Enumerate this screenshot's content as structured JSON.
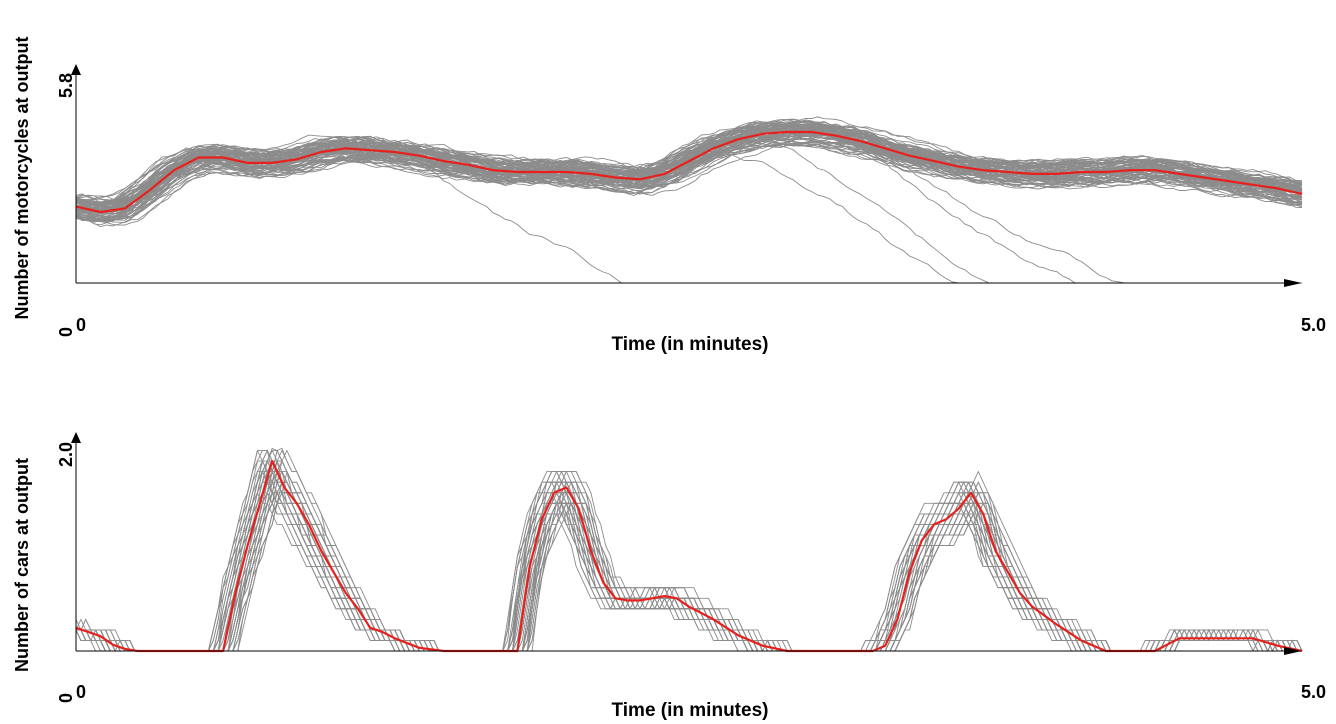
{
  "chart_data": [
    {
      "type": "line",
      "ylabel": "Number of motorcycles at output",
      "xlabel": "Time (in minutes)",
      "xlim": [
        0,
        5.0
      ],
      "ylim": [
        0,
        5.8
      ],
      "x_tick_labels": [
        "0",
        "5.0"
      ],
      "y_tick_labels": [
        "0",
        "5.8"
      ],
      "series_colors": {
        "mean": "#e8201c",
        "runs": "#8c8c8c"
      },
      "mean": {
        "x": [
          0,
          0.1,
          0.2,
          0.3,
          0.4,
          0.5,
          0.6,
          0.7,
          0.8,
          0.9,
          1.0,
          1.1,
          1.2,
          1.3,
          1.4,
          1.5,
          1.6,
          1.7,
          1.8,
          1.9,
          2.0,
          2.1,
          2.2,
          2.3,
          2.4,
          2.5,
          2.6,
          2.7,
          2.8,
          2.9,
          3.0,
          3.1,
          3.2,
          3.3,
          3.4,
          3.5,
          3.6,
          3.7,
          3.8,
          3.9,
          4.0,
          4.1,
          4.2,
          4.3,
          4.4,
          4.5,
          4.6,
          4.7,
          4.8,
          4.9,
          5.0
        ],
        "y": [
          2.1,
          1.95,
          2.05,
          2.55,
          3.1,
          3.45,
          3.45,
          3.3,
          3.3,
          3.4,
          3.6,
          3.7,
          3.65,
          3.6,
          3.5,
          3.35,
          3.25,
          3.1,
          3.05,
          3.05,
          3.05,
          3.0,
          2.9,
          2.85,
          3.0,
          3.35,
          3.7,
          3.95,
          4.1,
          4.15,
          4.15,
          4.05,
          3.9,
          3.7,
          3.5,
          3.35,
          3.2,
          3.1,
          3.05,
          3.0,
          3.0,
          3.05,
          3.05,
          3.1,
          3.1,
          3.0,
          2.9,
          2.8,
          2.7,
          2.6,
          2.45
        ]
      }
    },
    {
      "type": "line",
      "ylabel": "Number of cars at output",
      "xlabel": "Time (in minutes)",
      "xlim": [
        0,
        5.0
      ],
      "ylim": [
        0,
        2.0
      ],
      "x_tick_labels": [
        "0",
        "5.0"
      ],
      "y_tick_labels": [
        "0",
        "2.0"
      ],
      "series_colors": {
        "mean": "#e8201c",
        "runs": "#8c8c8c"
      },
      "mean": {
        "x": [
          0,
          0.05,
          0.1,
          0.15,
          0.2,
          0.25,
          0.3,
          0.4,
          0.5,
          0.55,
          0.6,
          0.65,
          0.7,
          0.75,
          0.8,
          0.85,
          0.9,
          0.95,
          1.0,
          1.05,
          1.1,
          1.15,
          1.2,
          1.25,
          1.3,
          1.4,
          1.5,
          1.6,
          1.7,
          1.75,
          1.8,
          1.85,
          1.9,
          1.95,
          2.0,
          2.05,
          2.1,
          2.15,
          2.2,
          2.25,
          2.3,
          2.35,
          2.4,
          2.45,
          2.5,
          2.6,
          2.7,
          2.8,
          2.9,
          3.0,
          3.05,
          3.1,
          3.15,
          3.2,
          3.25,
          3.3,
          3.35,
          3.4,
          3.45,
          3.5,
          3.55,
          3.6,
          3.65,
          3.7,
          3.75,
          3.8,
          3.85,
          3.9,
          4.0,
          4.1,
          4.2,
          4.3,
          4.4,
          4.5,
          4.55,
          4.6,
          4.65,
          4.7,
          4.75,
          4.8,
          4.9,
          5.0
        ],
        "y": [
          0.22,
          0.18,
          0.14,
          0.06,
          0.02,
          0.0,
          0.0,
          0.0,
          0.0,
          0.0,
          0.0,
          0.55,
          1.0,
          1.4,
          1.8,
          1.55,
          1.4,
          1.2,
          0.95,
          0.75,
          0.55,
          0.4,
          0.22,
          0.18,
          0.12,
          0.03,
          0.0,
          0.0,
          0.0,
          0.0,
          0.0,
          0.8,
          1.25,
          1.5,
          1.55,
          1.35,
          0.95,
          0.65,
          0.5,
          0.48,
          0.48,
          0.5,
          0.52,
          0.5,
          0.42,
          0.3,
          0.15,
          0.05,
          0.0,
          0.0,
          0.0,
          0.0,
          0.0,
          0.0,
          0.0,
          0.05,
          0.3,
          0.75,
          1.05,
          1.2,
          1.25,
          1.35,
          1.5,
          1.3,
          0.95,
          0.75,
          0.55,
          0.42,
          0.25,
          0.1,
          0.0,
          0.0,
          0.0,
          0.12,
          0.12,
          0.12,
          0.12,
          0.12,
          0.12,
          0.12,
          0.05,
          0.0
        ]
      }
    }
  ]
}
